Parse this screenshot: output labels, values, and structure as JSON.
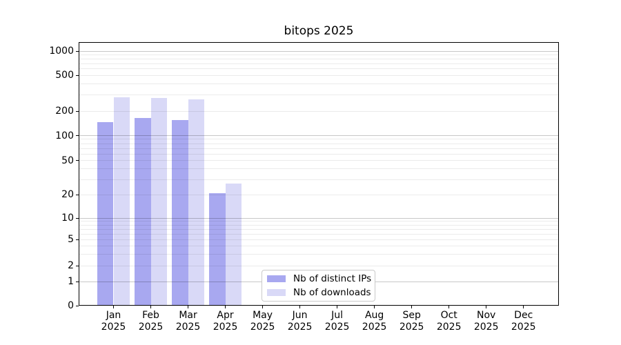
{
  "chart_data": {
    "type": "bar",
    "title": "bitops 2025",
    "categories": [
      "Jan 2025",
      "Feb 2025",
      "Mar 2025",
      "Apr 2025",
      "May 2025",
      "Jun 2025",
      "Jul 2025",
      "Aug 2025",
      "Sep 2025",
      "Oct 2025",
      "Nov 2025",
      "Dec 2025"
    ],
    "series": [
      {
        "name": "Nb of distinct IPs",
        "color": "#a8a8f0",
        "values": [
          145,
          165,
          155,
          21,
          null,
          null,
          null,
          null,
          null,
          null,
          null,
          null
        ]
      },
      {
        "name": "Nb of downloads",
        "color": "#d9d9f7",
        "values": [
          285,
          280,
          270,
          27,
          null,
          null,
          null,
          null,
          null,
          null,
          null,
          null
        ]
      }
    ],
    "xlabel": "",
    "ylabel": "",
    "yscale": "symlog",
    "yticks": [
      0,
      1,
      2,
      5,
      10,
      20,
      50,
      100,
      200,
      500,
      1000
    ],
    "ytick_labels": [
      "0",
      "1",
      "2",
      "5",
      "10",
      "20",
      "50",
      "100",
      "200",
      "500",
      "1000"
    ],
    "ylim": [
      0,
      1270
    ],
    "grid": "horizontal major+minor, drawn over bars",
    "legend_position": "lower center inside plot",
    "colors": {
      "major_grid": "#c7c7c7",
      "minor_grid": "#ebebeb",
      "axis": "#000000",
      "text": "#000000",
      "background": "#ffffff"
    }
  }
}
